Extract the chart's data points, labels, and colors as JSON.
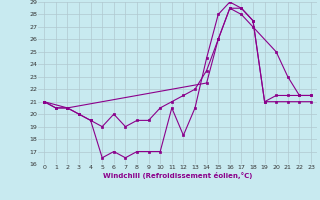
{
  "xlabel": "Windchill (Refroidissement éolien,°C)",
  "background_color": "#c8eaf0",
  "line_color": "#8b008b",
  "grid_color": "#b0c8d0",
  "xlim": [
    -0.5,
    23.5
  ],
  "ylim": [
    16,
    29
  ],
  "yticks": [
    16,
    17,
    18,
    19,
    20,
    21,
    22,
    23,
    24,
    25,
    26,
    27,
    28,
    29
  ],
  "xticks": [
    0,
    1,
    2,
    3,
    4,
    5,
    6,
    7,
    8,
    9,
    10,
    11,
    12,
    13,
    14,
    15,
    16,
    17,
    18,
    19,
    20,
    21,
    22,
    23
  ],
  "series1_x": [
    0,
    1,
    2,
    3,
    4,
    5,
    6,
    7,
    8,
    9,
    10,
    11,
    12,
    13,
    14,
    15,
    16,
    17,
    18,
    19,
    20,
    21,
    22,
    23
  ],
  "series1_y": [
    21.0,
    20.5,
    20.5,
    20.0,
    19.5,
    16.5,
    17.0,
    16.5,
    17.0,
    17.0,
    17.0,
    20.5,
    18.3,
    20.5,
    24.5,
    28.0,
    29.0,
    28.5,
    27.5,
    21.0,
    21.0,
    21.0,
    21.0,
    21.0
  ],
  "series2_x": [
    0,
    1,
    2,
    3,
    4,
    5,
    6,
    7,
    8,
    9,
    10,
    11,
    12,
    13,
    14,
    15,
    16,
    17,
    18,
    19,
    20,
    21,
    22,
    23
  ],
  "series2_y": [
    21.0,
    20.5,
    20.5,
    20.0,
    19.5,
    19.0,
    20.0,
    19.0,
    19.5,
    19.5,
    20.5,
    21.0,
    21.5,
    22.0,
    23.5,
    26.0,
    28.5,
    28.5,
    27.5,
    21.0,
    21.5,
    21.5,
    21.5,
    21.5
  ],
  "series3_x": [
    0,
    2,
    14,
    15,
    16,
    17,
    18,
    20,
    21,
    22,
    23
  ],
  "series3_y": [
    21.0,
    20.5,
    22.5,
    26.0,
    28.5,
    28.0,
    27.0,
    25.0,
    23.0,
    21.5,
    21.5
  ]
}
